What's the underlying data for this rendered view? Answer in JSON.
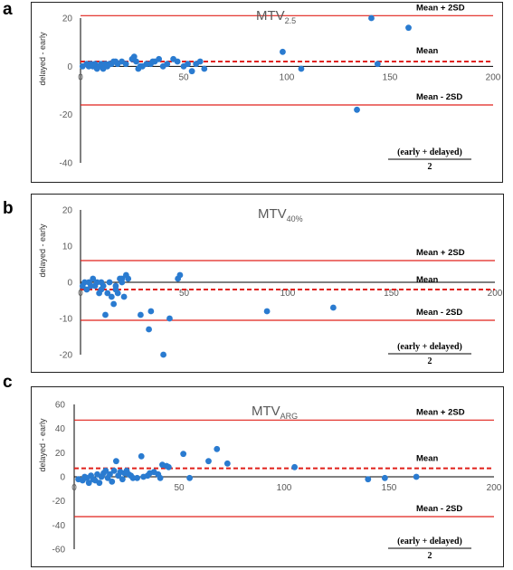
{
  "chart_data": [
    {
      "panel_label": "a",
      "type": "scatter",
      "title": "MTV",
      "title_subscript": "2.5",
      "ylabel": "delayed - early",
      "xlabel_numerator": "(early + delayed)",
      "xlabel_denominator": "2",
      "xlim": [
        0,
        200
      ],
      "ylim": [
        -40,
        20
      ],
      "xticks": [
        0,
        50,
        100,
        150,
        200
      ],
      "yticks": [
        -40,
        -20,
        0,
        20
      ],
      "mean": 2,
      "upper": 21,
      "lower": -16,
      "labels": {
        "upper": "Mean + 2SD",
        "mean": "Mean",
        "lower": "Mean - 2SD"
      },
      "x": [
        1,
        3,
        4,
        5,
        6,
        7,
        8,
        9,
        10,
        11,
        12,
        13,
        14,
        15,
        16,
        17,
        18,
        20,
        22,
        25,
        26,
        27,
        28,
        29,
        30,
        32,
        34,
        35,
        36,
        38,
        40,
        42,
        45,
        47,
        50,
        52,
        54,
        56,
        58,
        60,
        98,
        107,
        134,
        141,
        144,
        159
      ],
      "y": [
        0,
        1,
        0,
        1,
        0,
        1,
        -1,
        0,
        1,
        -1,
        1,
        0,
        1,
        1,
        2,
        2,
        1,
        2,
        1,
        3,
        4,
        2,
        -1,
        0,
        0,
        1,
        1,
        2,
        2,
        3,
        0,
        1,
        3,
        2,
        0,
        1,
        -2,
        1,
        2,
        -1,
        6,
        -1,
        -18,
        20,
        1,
        16
      ]
    },
    {
      "panel_label": "b",
      "type": "scatter",
      "title": "MTV",
      "title_subscript": "40%",
      "ylabel": "delayed - early",
      "xlabel_numerator": "(early + delayed)",
      "xlabel_denominator": "2",
      "xlim": [
        0,
        200
      ],
      "ylim": [
        -20,
        20
      ],
      "xticks": [
        0,
        50,
        100,
        150,
        200
      ],
      "yticks": [
        -20,
        -10,
        0,
        10,
        20
      ],
      "mean": -2,
      "upper": 6,
      "lower": -10.5,
      "labels": {
        "upper": "Mean + 2SD",
        "mean": "Mean",
        "lower": "Mean - 2SD"
      },
      "x": [
        1,
        2,
        3,
        4,
        5,
        6,
        7,
        8,
        9,
        10,
        10,
        11,
        12,
        13,
        14,
        15,
        16,
        17,
        17,
        18,
        19,
        20,
        20,
        21,
        22,
        23,
        29,
        33,
        34,
        40,
        43,
        47,
        48,
        90,
        122
      ],
      "y": [
        -1,
        0,
        -2,
        0,
        -1,
        1,
        -1,
        0,
        -3,
        -2,
        0,
        -1,
        -9,
        -3,
        0,
        -4,
        -6,
        -1,
        -2,
        -3,
        1,
        1,
        0,
        -4,
        2,
        1,
        -9,
        -13,
        -8,
        -20,
        -10,
        1,
        2,
        -8,
        -7
      ]
    },
    {
      "panel_label": "c",
      "type": "scatter",
      "title": "MTV",
      "title_subscript": "ARG",
      "ylabel": "delayed - early",
      "xlabel_numerator": "(early + delayed)",
      "xlabel_denominator": "2",
      "xlim": [
        0,
        200
      ],
      "ylim": [
        -60,
        60
      ],
      "xticks": [
        0,
        50,
        100,
        150,
        200
      ],
      "yticks": [
        -60,
        -40,
        -20,
        0,
        20,
        40,
        60
      ],
      "mean": 7,
      "upper": 47,
      "lower": -33,
      "labels": {
        "upper": "Mean + 2SD",
        "mean": "Mean",
        "lower": "Mean - 2SD"
      },
      "x": [
        2,
        4,
        5,
        6,
        7,
        8,
        9,
        10,
        11,
        12,
        13,
        14,
        15,
        16,
        17,
        18,
        19,
        20,
        21,
        22,
        23,
        24,
        25,
        26,
        27,
        28,
        30,
        32,
        33,
        35,
        36,
        38,
        40,
        41,
        42,
        44,
        45,
        52,
        55,
        64,
        68,
        73,
        105,
        140,
        148,
        163
      ],
      "y": [
        -2,
        -3,
        0,
        -1,
        -5,
        1,
        -2,
        -3,
        2,
        -5,
        0,
        3,
        5,
        -1,
        2,
        -4,
        5,
        13,
        1,
        4,
        -2,
        3,
        5,
        2,
        1,
        -1,
        -1,
        17,
        0,
        1,
        3,
        4,
        2,
        -1,
        10,
        9,
        8,
        19,
        -1,
        13,
        23,
        11,
        8,
        -2,
        -1,
        0
      ]
    }
  ]
}
